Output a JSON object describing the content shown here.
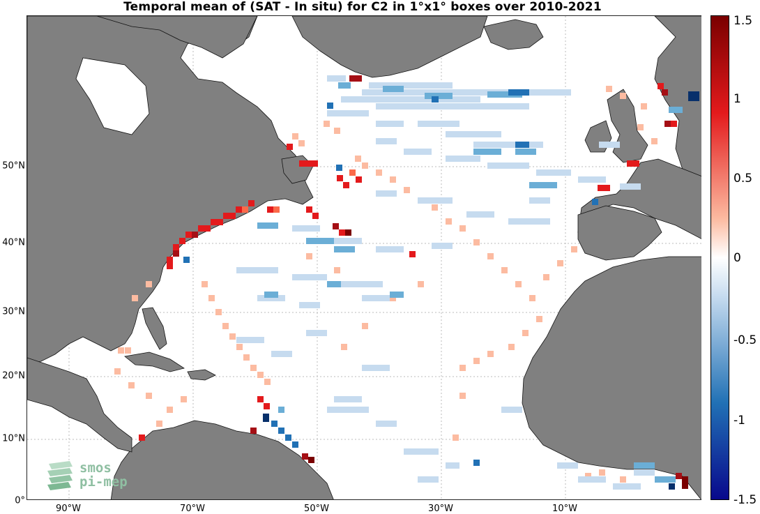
{
  "title": "Temporal mean of (SAT - In situ) for C2 in 1°x1° boxes over 2010-2021",
  "axes": {
    "lon_ticks": [
      "90°W",
      "70°W",
      "50°W",
      "30°W",
      "10°W"
    ],
    "lat_ticks": [
      "50°N",
      "40°N",
      "30°N",
      "20°N",
      "10°N",
      "0°"
    ]
  },
  "colorbar": {
    "labels": [
      "1.5",
      "1",
      "0.5",
      "0",
      "-0.5",
      "-1",
      "-1.5"
    ],
    "min": -1.5,
    "max": 1.5,
    "colors": {
      "negative": "#08088c",
      "neutral": "#ffffff",
      "positive": "#7a0000"
    }
  },
  "land_color": "#808080",
  "grid": true,
  "logo": {
    "line1": "smos",
    "line2": "pi-mep"
  }
}
